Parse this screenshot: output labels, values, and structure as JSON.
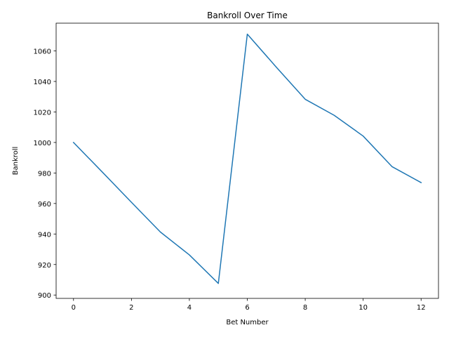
{
  "chart_data": {
    "type": "line",
    "title": "Bankroll Over Time",
    "xlabel": "Bet Number",
    "ylabel": "Bankroll",
    "x": [
      0,
      1,
      2,
      3,
      4,
      5,
      6,
      7,
      8,
      9,
      10,
      11,
      12
    ],
    "series": [
      {
        "values": [
          1000,
          980.5,
          960.8,
          941.3,
          926.3,
          907.6,
          1071.0,
          1049.4,
          1028.3,
          1017.8,
          1004.2,
          984.1,
          973.7
        ],
        "color": "#1f77b4"
      }
    ],
    "xlim": [
      -0.6,
      12.6
    ],
    "ylim": [
      897.8,
      1078.2
    ],
    "xticks": [
      0,
      2,
      4,
      6,
      8,
      10,
      12
    ],
    "yticks": [
      900,
      920,
      940,
      960,
      980,
      1000,
      1020,
      1040,
      1060
    ],
    "grid": false
  }
}
